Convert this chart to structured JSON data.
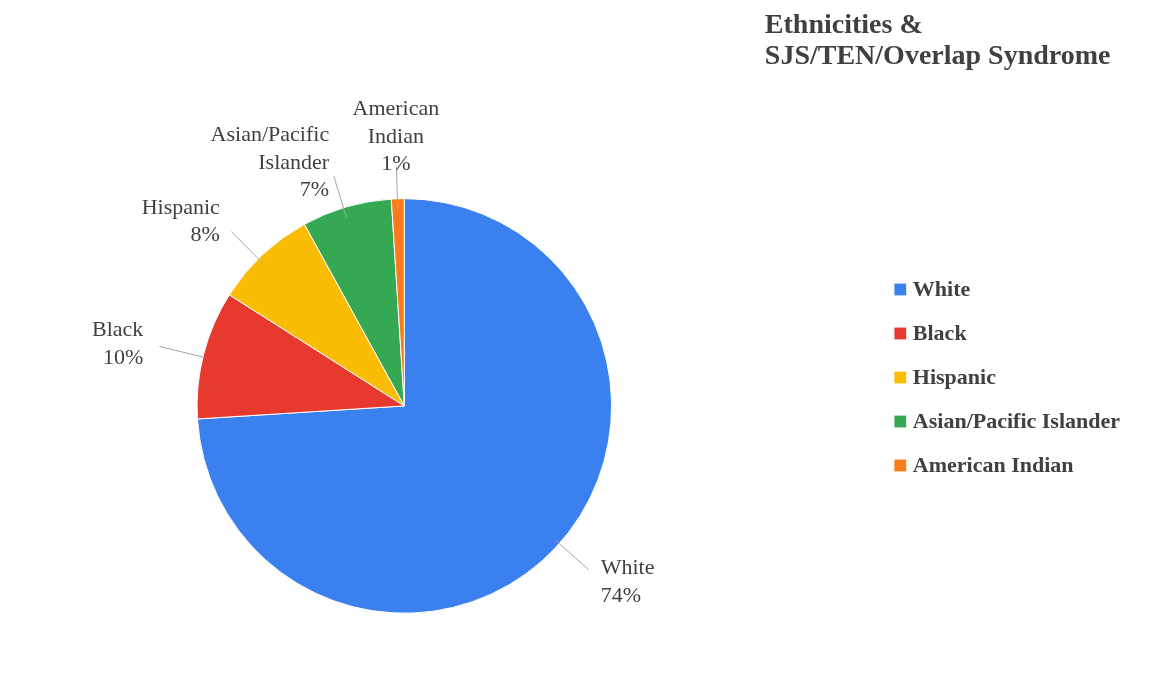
{
  "chart_data": {
    "type": "pie",
    "title": "Ethnicities &\nSJS/TEN/Overlap Syndrome",
    "categories": [
      "White",
      "Black",
      "Hispanic",
      "Asian/Pacific Islander",
      "American Indian"
    ],
    "values": [
      74,
      10,
      8,
      7,
      1
    ],
    "colors": [
      "#3a80ee",
      "#e8392e",
      "#fbbc04",
      "#34a853",
      "#fa7b17"
    ],
    "value_labels": [
      "74%",
      "10%",
      "8%",
      "7%",
      "1%"
    ],
    "legend": "right"
  }
}
